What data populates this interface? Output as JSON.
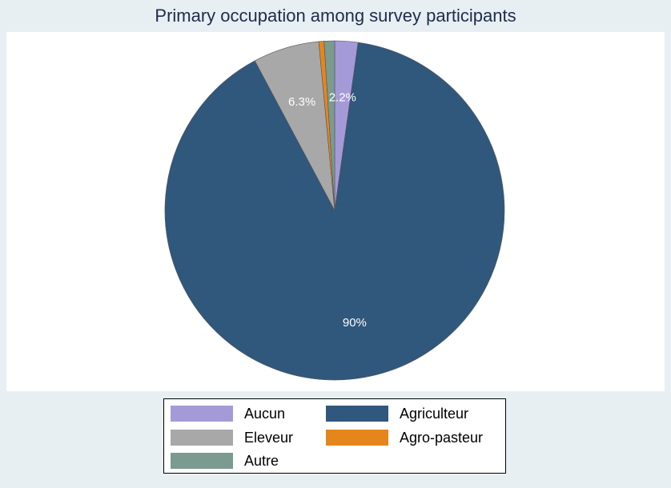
{
  "chart_data": {
    "type": "pie",
    "title": "Primary occupation among survey participants",
    "slices": [
      {
        "label": "Aucun",
        "value": 2.2,
        "display": "2.2%",
        "color": "#a59ad8"
      },
      {
        "label": "Agriculteur",
        "value": 90.0,
        "display": "90%",
        "color": "#30577c"
      },
      {
        "label": "Eleveur",
        "value": 6.3,
        "display": "6.3%",
        "color": "#a8a8a8"
      },
      {
        "label": "Agro-pasteur",
        "value": 0.5,
        "display": "",
        "color": "#e5861c"
      },
      {
        "label": "Autre",
        "value": 1.0,
        "display": "",
        "color": "#7b9a90"
      }
    ],
    "legend": {
      "placement": "bottom",
      "items": [
        "Aucun",
        "Agriculteur",
        "Eleveur",
        "Agro-pasteur",
        "Autre"
      ]
    }
  }
}
